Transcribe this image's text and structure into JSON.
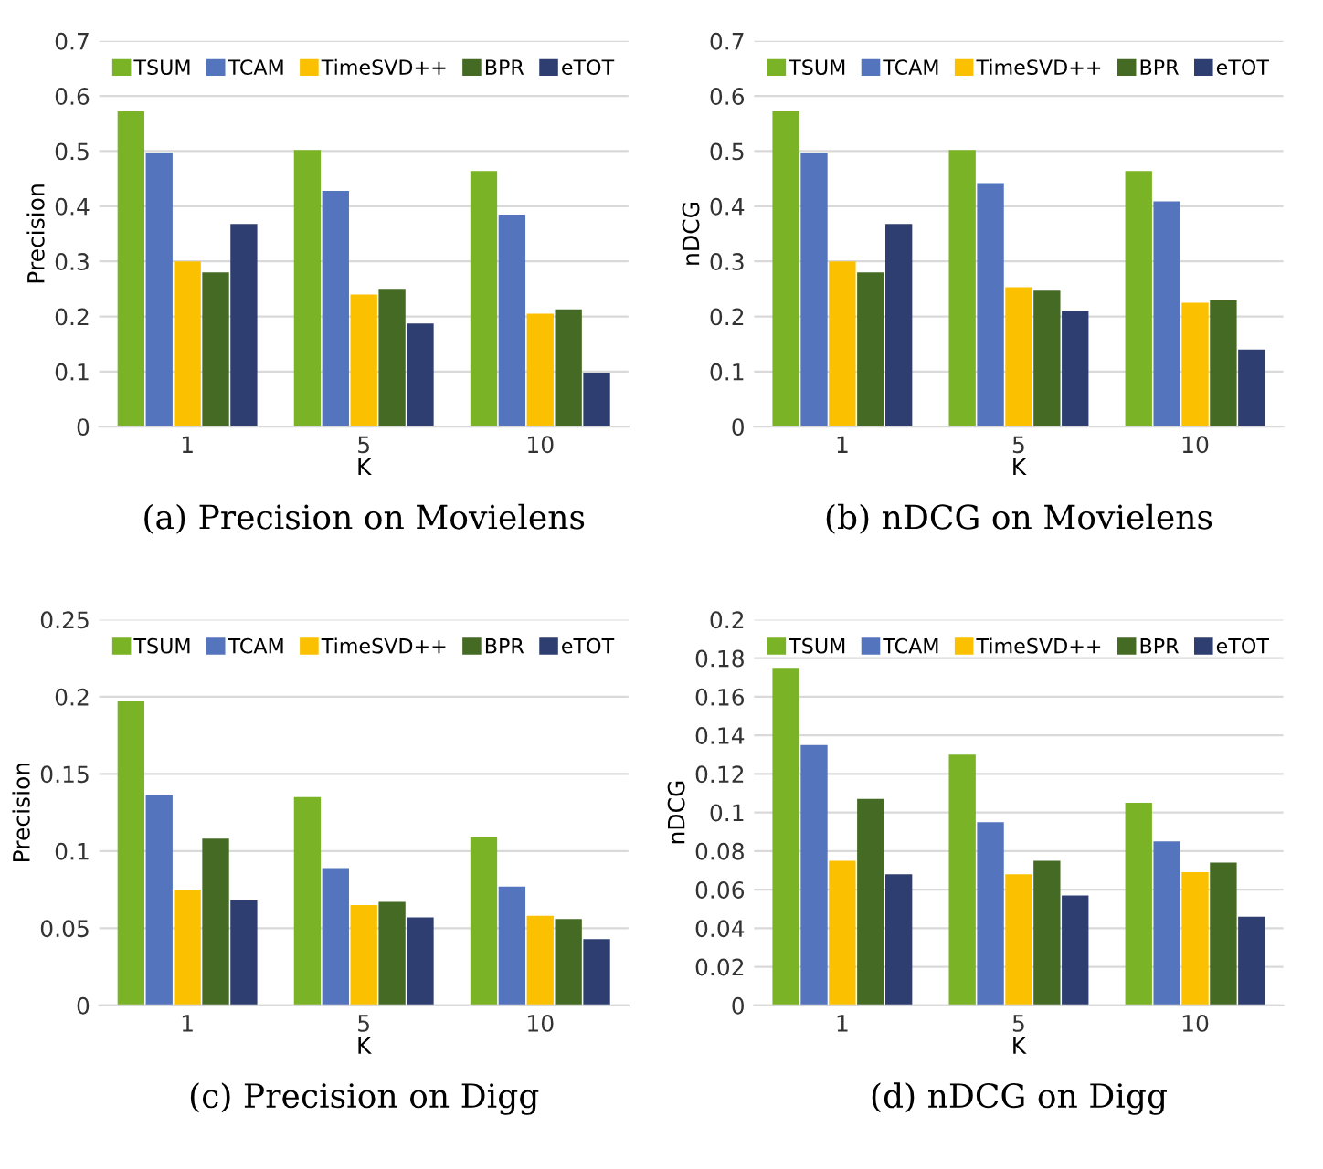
{
  "chart_data": [
    {
      "type": "bar",
      "categories": [
        "1",
        "5",
        "10"
      ],
      "xlabel": "K",
      "ylabel": "Precision",
      "ylim": [
        0,
        0.7
      ],
      "yticks": [
        0,
        0.1,
        0.2,
        0.3,
        0.4,
        0.5,
        0.6,
        0.7
      ],
      "grid": "y",
      "legend": "top",
      "annotations": [
        "(a) Precision on Movielens"
      ],
      "series": [
        {
          "name": "TSUM",
          "color": "#7ab325",
          "values": [
            0.572,
            0.502,
            0.464
          ]
        },
        {
          "name": "TCAM",
          "color": "#5475bd",
          "values": [
            0.497,
            0.428,
            0.385
          ]
        },
        {
          "name": "TimeSVD++",
          "color": "#fbc000",
          "values": [
            0.3,
            0.24,
            0.205
          ]
        },
        {
          "name": "BPR",
          "color": "#446a24",
          "values": [
            0.28,
            0.25,
            0.213
          ]
        },
        {
          "name": "eTOT",
          "color": "#2e3e70",
          "values": [
            0.368,
            0.187,
            0.098
          ]
        }
      ]
    },
    {
      "type": "bar",
      "categories": [
        "1",
        "5",
        "10"
      ],
      "xlabel": "K",
      "ylabel": "nDCG",
      "ylim": [
        0,
        0.7
      ],
      "yticks": [
        0,
        0.1,
        0.2,
        0.3,
        0.4,
        0.5,
        0.6,
        0.7
      ],
      "grid": "y",
      "legend": "top",
      "annotations": [
        "(b) nDCG on Movielens"
      ],
      "series": [
        {
          "name": "TSUM",
          "color": "#7ab325",
          "values": [
            0.572,
            0.502,
            0.464
          ]
        },
        {
          "name": "TCAM",
          "color": "#5475bd",
          "values": [
            0.497,
            0.442,
            0.409
          ]
        },
        {
          "name": "TimeSVD++",
          "color": "#fbc000",
          "values": [
            0.3,
            0.253,
            0.225
          ]
        },
        {
          "name": "BPR",
          "color": "#446a24",
          "values": [
            0.28,
            0.247,
            0.229
          ]
        },
        {
          "name": "eTOT",
          "color": "#2e3e70",
          "values": [
            0.368,
            0.21,
            0.14
          ]
        }
      ]
    },
    {
      "type": "bar",
      "categories": [
        "1",
        "5",
        "10"
      ],
      "xlabel": "K",
      "ylabel": "Precision",
      "ylim": [
        0,
        0.25
      ],
      "yticks": [
        0,
        0.05,
        0.1,
        0.15,
        0.2,
        0.25
      ],
      "grid": "y",
      "legend": "top",
      "annotations": [
        "(c) Precision on Digg"
      ],
      "series": [
        {
          "name": "TSUM",
          "color": "#7ab325",
          "values": [
            0.197,
            0.135,
            0.109
          ]
        },
        {
          "name": "TCAM",
          "color": "#5475bd",
          "values": [
            0.136,
            0.089,
            0.077
          ]
        },
        {
          "name": "TimeSVD++",
          "color": "#fbc000",
          "values": [
            0.075,
            0.065,
            0.058
          ]
        },
        {
          "name": "BPR",
          "color": "#446a24",
          "values": [
            0.108,
            0.067,
            0.056
          ]
        },
        {
          "name": "eTOT",
          "color": "#2e3e70",
          "values": [
            0.068,
            0.057,
            0.043
          ]
        }
      ]
    },
    {
      "type": "bar",
      "categories": [
        "1",
        "5",
        "10"
      ],
      "xlabel": "K",
      "ylabel": "nDCG",
      "ylim": [
        0,
        0.2
      ],
      "yticks": [
        0,
        0.02,
        0.04,
        0.06,
        0.08,
        0.1,
        0.12,
        0.14,
        0.16,
        0.18,
        0.2
      ],
      "grid": "y",
      "legend": "top",
      "annotations": [
        "(d) nDCG on Digg"
      ],
      "series": [
        {
          "name": "TSUM",
          "color": "#7ab325",
          "values": [
            0.175,
            0.13,
            0.105
          ]
        },
        {
          "name": "TCAM",
          "color": "#5475bd",
          "values": [
            0.135,
            0.095,
            0.085
          ]
        },
        {
          "name": "TimeSVD++",
          "color": "#fbc000",
          "values": [
            0.075,
            0.068,
            0.069
          ]
        },
        {
          "name": "BPR",
          "color": "#446a24",
          "values": [
            0.107,
            0.075,
            0.074
          ]
        },
        {
          "name": "eTOT",
          "color": "#2e3e70",
          "values": [
            0.068,
            0.057,
            0.046
          ]
        }
      ]
    }
  ]
}
